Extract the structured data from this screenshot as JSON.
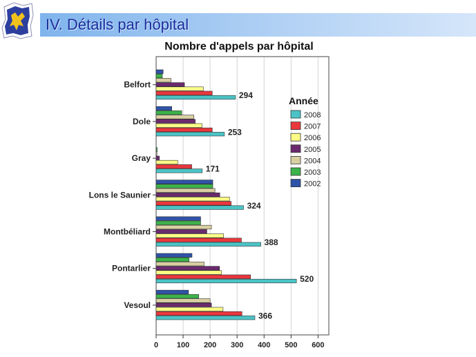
{
  "slide": {
    "title": "IV. Détails par hôpital"
  },
  "colors": {
    "2008": "#4bc3c6",
    "2007": "#e8373d",
    "2006": "#fcfc86",
    "2005": "#6b2a6e",
    "2004": "#d8cfa2",
    "2003": "#3cb24a",
    "2002": "#2f53a8"
  },
  "chart_data": {
    "type": "bar",
    "orientation": "horizontal",
    "title": "Nombre d'appels par hôpital",
    "xlabel": "",
    "ylabel": "",
    "xlim": [
      0,
      640
    ],
    "xticks": [
      0,
      100,
      200,
      300,
      400,
      500,
      600
    ],
    "grid": true,
    "legend_title": "Année",
    "legend_position": "right",
    "categories": [
      "Belfort",
      "Dole",
      "Gray",
      "Lons le Saunier",
      "Montbéliard",
      "Pontarlier",
      "Vesoul"
    ],
    "series": [
      {
        "name": "2002",
        "values": [
          26,
          58,
          0,
          210,
          165,
          133,
          120
        ]
      },
      {
        "name": "2003",
        "values": [
          23,
          95,
          4,
          210,
          165,
          122,
          158
        ]
      },
      {
        "name": "2004",
        "values": [
          55,
          140,
          3,
          218,
          205,
          178,
          200
        ]
      },
      {
        "name": "2005",
        "values": [
          105,
          145,
          12,
          236,
          188,
          235,
          205
        ]
      },
      {
        "name": "2006",
        "values": [
          175,
          170,
          80,
          272,
          250,
          242,
          248
        ]
      },
      {
        "name": "2007",
        "values": [
          208,
          208,
          132,
          278,
          316,
          350,
          318
        ]
      },
      {
        "name": "2008",
        "values": [
          294,
          253,
          171,
          324,
          388,
          520,
          366
        ]
      }
    ],
    "legend_order": [
      "2008",
      "2007",
      "2006",
      "2005",
      "2004",
      "2003",
      "2002"
    ],
    "data_labels": [
      294,
      253,
      171,
      324,
      388,
      520,
      366
    ]
  }
}
